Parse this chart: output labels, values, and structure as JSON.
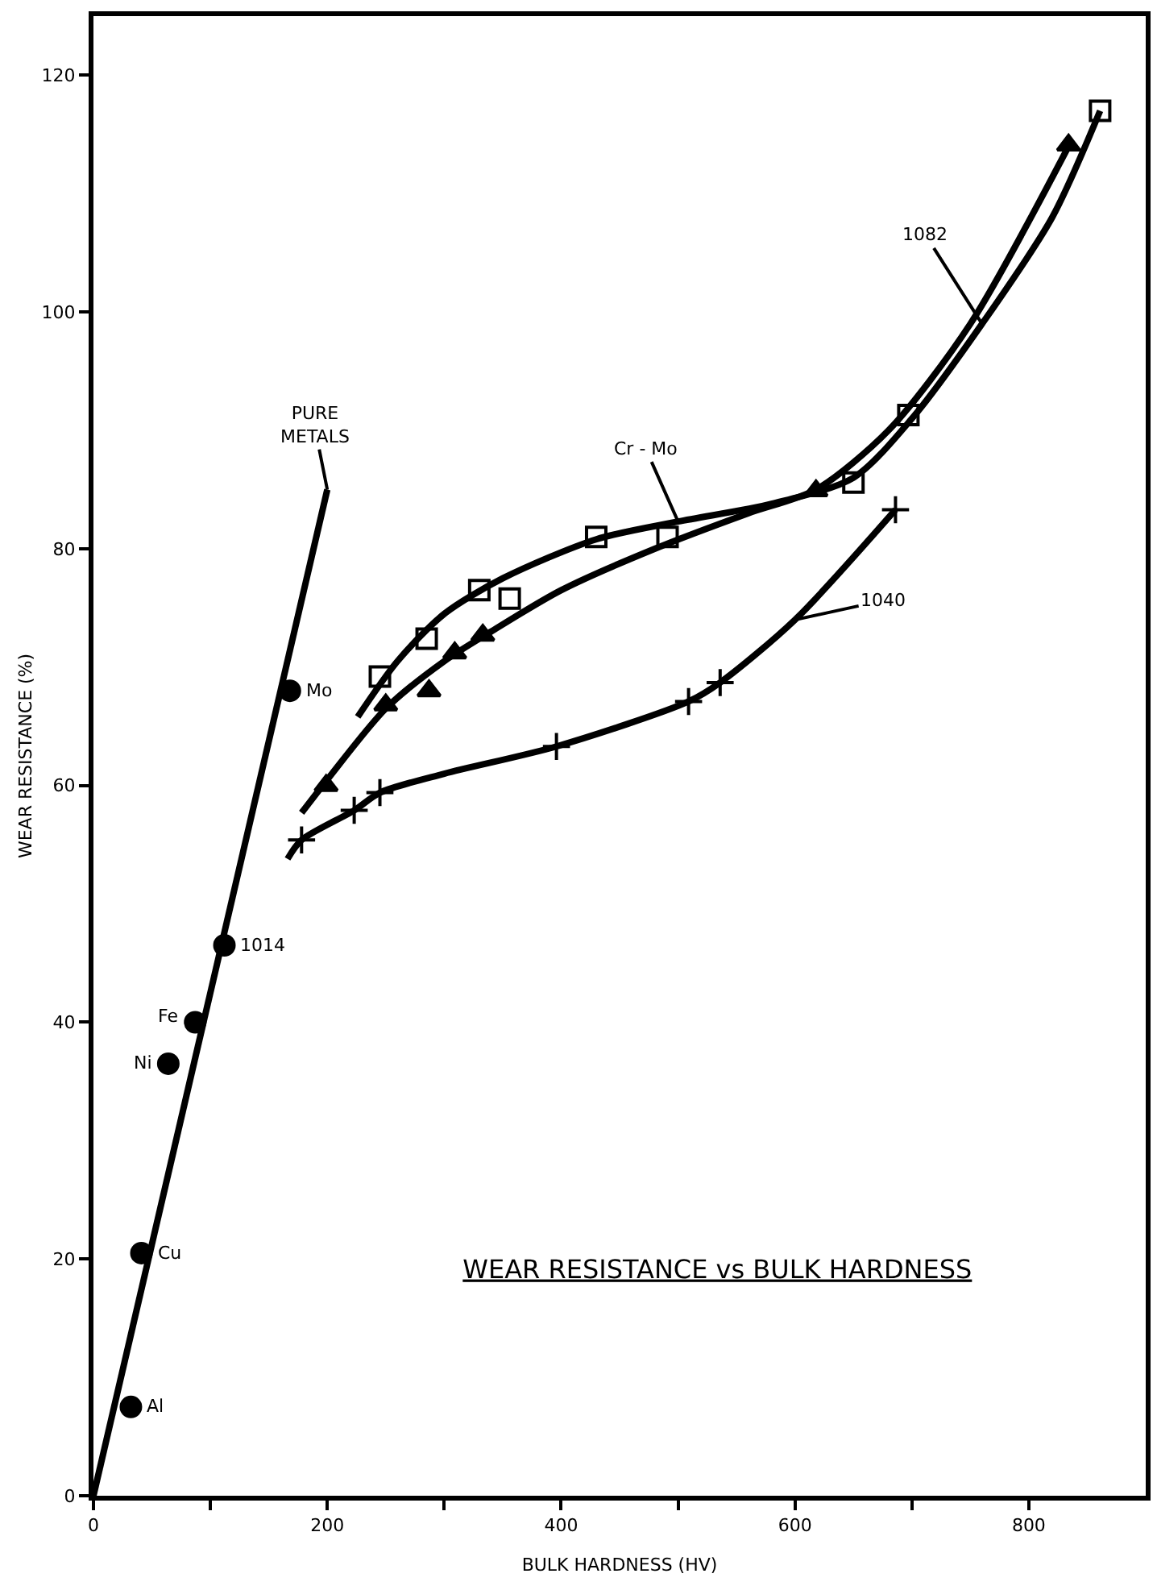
{
  "chart_data": {
    "type": "scatter",
    "title": "WEAR RESISTANCE vs BULK HARDNESS",
    "xlabel": "BULK HARDNESS (HV)",
    "ylabel": "WEAR RESISTANCE (%)",
    "xlim": [
      0,
      900
    ],
    "xticks": [
      0,
      {
        "value": 100,
        "label": null
      },
      200,
      {
        "value": 300,
        "label": null
      },
      400,
      {
        "value": 500,
        "label": null
      },
      600,
      {
        "value": 700,
        "label": null
      },
      800
    ],
    "ylim": [
      0,
      125
    ],
    "yticks": [
      0,
      20,
      40,
      60,
      80,
      100,
      120
    ],
    "series": [
      {
        "type": "line",
        "color": "#000000",
        "marker": "none",
        "x": [
          0,
          200
        ],
        "values": [
          0,
          85
        ]
      },
      {
        "color": "#000000",
        "marker": "circle",
        "x": [
          32,
          41,
          64,
          87,
          112,
          168
        ],
        "values": [
          7.5,
          20.5,
          36.5,
          40,
          46.5,
          68
        ]
      },
      {
        "type": "line",
        "color": "#000000",
        "marker": "none",
        "x": [
          226,
          260,
          300,
          350,
          430,
          500,
          580,
          650,
          700,
          760,
          820,
          861
        ],
        "values": [
          65.8,
          70.5,
          74.5,
          77.5,
          80.8,
          82.3,
          83.8,
          86,
          91,
          99,
          108,
          117
        ]
      },
      {
        "color": "#000000",
        "marker": "square",
        "x": [
          245,
          285,
          330,
          356,
          430,
          491,
          650,
          697,
          861
        ],
        "values": [
          69.2,
          72.4,
          76.5,
          75.8,
          81,
          81,
          85.6,
          91.3,
          117
        ]
      },
      {
        "type": "line",
        "color": "#000000",
        "marker": "none",
        "x": [
          178,
          200,
          250,
          300,
          340,
          400,
          480,
          560,
          618,
          680,
          750,
          834
        ],
        "values": [
          57.7,
          60.5,
          66.5,
          70.5,
          73,
          76.5,
          80,
          83,
          85,
          90,
          99,
          114
        ]
      },
      {
        "color": "#000000",
        "marker": "triangle",
        "x": [
          199,
          250,
          287,
          309,
          333,
          618,
          834
        ],
        "values": [
          60,
          66.8,
          68,
          71.2,
          72.7,
          84.9,
          114.1
        ]
      },
      {
        "type": "line",
        "color": "#000000",
        "marker": "none",
        "x": [
          166,
          178,
          223,
          245,
          300,
          396,
          509,
          536,
          600,
          686
        ],
        "values": [
          53.8,
          55.4,
          57.9,
          59.4,
          61,
          63.3,
          67.1,
          68.7,
          74,
          83.3
        ]
      },
      {
        "color": "#000000",
        "marker": "cross",
        "x": [
          178,
          223,
          245,
          396,
          509,
          536,
          686
        ],
        "values": [
          55.4,
          57.9,
          59.4,
          63.3,
          67.1,
          68.7,
          83.3
        ]
      }
    ],
    "annotations": [
      {
        "text": "Al",
        "x": 32,
        "y": 7.5
      },
      {
        "text": "Cu",
        "x": 41,
        "y": 20.5
      },
      {
        "text": "Ni",
        "x": 64,
        "y": 36.5
      },
      {
        "text": "Fe",
        "x": 87,
        "y": 40
      },
      {
        "text": "1014",
        "x": 112,
        "y": 46.5
      },
      {
        "text": "Mo",
        "x": 168,
        "y": 68
      },
      {
        "text": "PURE\nMETALS",
        "x": 200,
        "y": 85
      },
      {
        "text": "Cr - Mo",
        "x": 500,
        "y": 82.3
      },
      {
        "text": "1082",
        "x": 760,
        "y": 99
      },
      {
        "text": "1040",
        "x": 600,
        "y": 74
      }
    ]
  }
}
